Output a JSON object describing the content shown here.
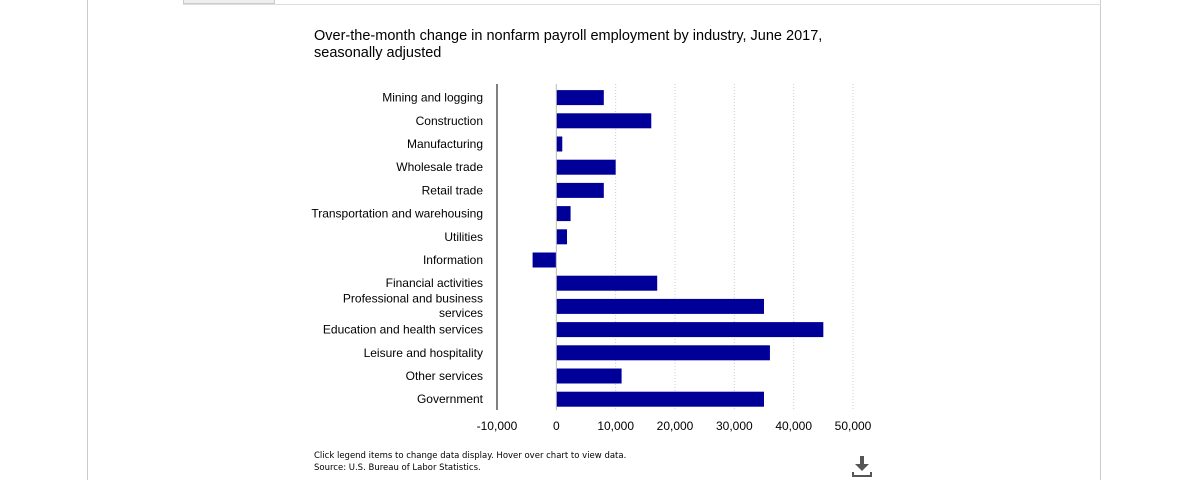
{
  "chart_title": "Over-the-month change in nonfarm payroll employment by industry, June 2017, seasonally adjusted",
  "footer": {
    "instructions": "Click legend items to change data display. Hover over chart to view data.",
    "source": "Source: U.S. Bureau of Labor Statistics."
  },
  "download_icon": "download-icon",
  "colors": {
    "bar": "#000099",
    "axis": "#000000",
    "grid": "#cccccc"
  },
  "chart_data": {
    "type": "bar",
    "orientation": "horizontal",
    "title": "Over-the-month change in nonfarm payroll employment by industry, June 2017, seasonally adjusted",
    "xlabel": "",
    "ylabel": "",
    "categories": [
      [
        "Mining and logging"
      ],
      [
        "Construction"
      ],
      [
        "Manufacturing"
      ],
      [
        "Wholesale trade"
      ],
      [
        "Retail trade"
      ],
      [
        "Transportation and warehousing"
      ],
      [
        "Utilities"
      ],
      [
        "Information"
      ],
      [
        "Financial activities"
      ],
      [
        "Professional and business",
        "services"
      ],
      [
        "Education and health services"
      ],
      [
        "Leisure and hospitality"
      ],
      [
        "Other services"
      ],
      [
        "Government"
      ]
    ],
    "values": [
      8000,
      16000,
      1000,
      10000,
      8000,
      2400,
      1800,
      -4000,
      17000,
      35000,
      45000,
      36000,
      11000,
      35000
    ],
    "xlim": [
      -10000,
      50000
    ],
    "ticks": [
      -10000,
      0,
      10000,
      20000,
      30000,
      40000,
      50000
    ],
    "tick_labels": [
      "-10,000",
      "0",
      "10,000",
      "20,000",
      "30,000",
      "40,000",
      "50,000"
    ],
    "grid": "vertical dotted",
    "legend": "none"
  }
}
